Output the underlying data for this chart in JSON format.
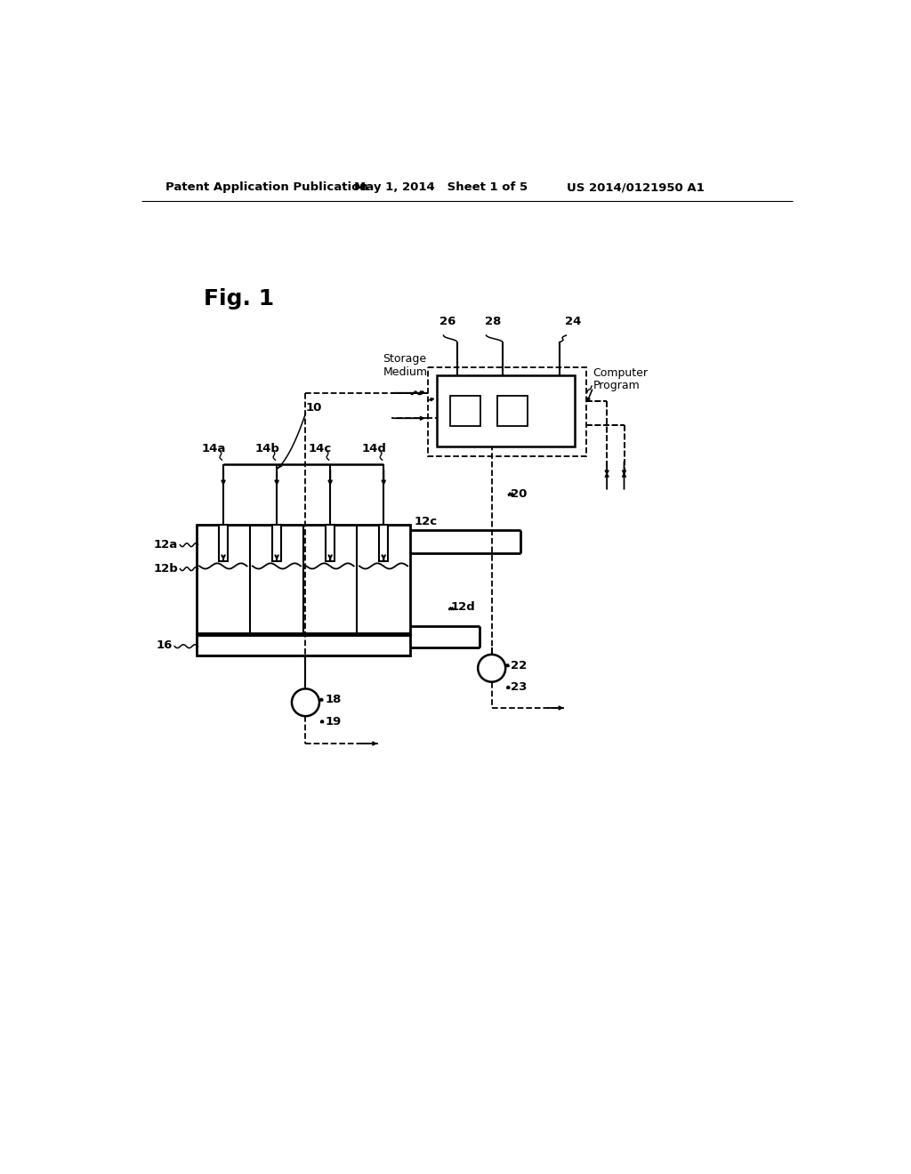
{
  "bg_color": "#ffffff",
  "header_text": "Patent Application Publication",
  "header_date": "May 1, 2014   Sheet 1 of 5",
  "header_patent": "US 2014/0121950 A1",
  "fig_label": "Fig. 1",
  "label_10": "10",
  "label_20": "20",
  "label_22": "22",
  "label_23": "23",
  "label_18": "18",
  "label_19": "19",
  "label_16": "16",
  "label_12a": "12a",
  "label_12b": "12b",
  "label_12c": "12c",
  "label_12d": "12d",
  "label_14a": "14a",
  "label_14b": "14b",
  "label_14c": "14c",
  "label_14d": "14d",
  "label_26": "26",
  "label_28": "28",
  "label_24": "24",
  "label_storage": "Storage\nMedium",
  "label_computer": "Computer\nProgram"
}
